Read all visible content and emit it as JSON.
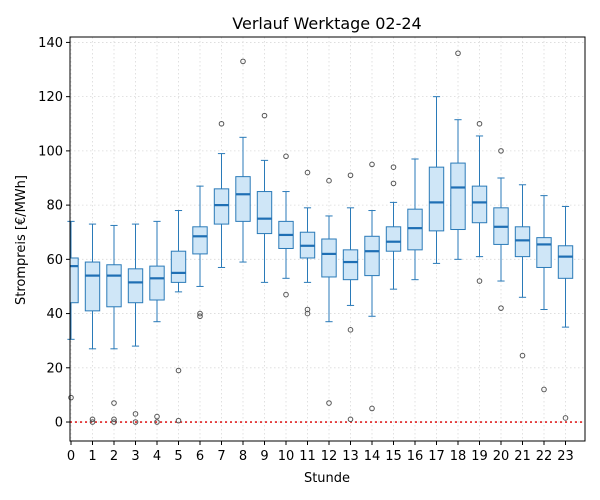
{
  "chart_data": {
    "type": "box",
    "title": "Verlauf Werktage 02-24",
    "xlabel": "Stunde",
    "ylabel": "Strompreis [€/MWh]",
    "ylim": [
      -7,
      142
    ],
    "yticks": [
      0,
      20,
      40,
      60,
      80,
      100,
      120,
      140
    ],
    "categories": [
      "0",
      "1",
      "2",
      "3",
      "4",
      "5",
      "6",
      "7",
      "8",
      "9",
      "10",
      "11",
      "12",
      "13",
      "14",
      "15",
      "16",
      "17",
      "18",
      "19",
      "20",
      "21",
      "22",
      "23"
    ],
    "reference_line": {
      "y": 0,
      "color": "#e02020",
      "style": "dotted"
    },
    "grid": true,
    "boxes": [
      {
        "q1": 44,
        "median": 57.5,
        "q3": 60.5,
        "whisker_low": 30.5,
        "whisker_high": 74,
        "outliers": [
          9
        ]
      },
      {
        "q1": 41,
        "median": 54,
        "q3": 59,
        "whisker_low": 27,
        "whisker_high": 73,
        "outliers": [
          1,
          0
        ]
      },
      {
        "q1": 42.5,
        "median": 54,
        "q3": 58,
        "whisker_low": 27,
        "whisker_high": 72.5,
        "outliers": [
          7,
          1,
          0
        ]
      },
      {
        "q1": 44,
        "median": 51.5,
        "q3": 56.5,
        "whisker_low": 28,
        "whisker_high": 73,
        "outliers": [
          3,
          0
        ]
      },
      {
        "q1": 45,
        "median": 53,
        "q3": 57.5,
        "whisker_low": 37,
        "whisker_high": 74,
        "outliers": [
          2,
          0
        ]
      },
      {
        "q1": 51.5,
        "median": 55,
        "q3": 63,
        "whisker_low": 48,
        "whisker_high": 78,
        "outliers": [
          19,
          0.5
        ]
      },
      {
        "q1": 62,
        "median": 68.5,
        "q3": 72,
        "whisker_low": 50,
        "whisker_high": 87,
        "outliers": [
          40,
          39
        ]
      },
      {
        "q1": 73,
        "median": 80,
        "q3": 86,
        "whisker_low": 57,
        "whisker_high": 99,
        "outliers": [
          110
        ]
      },
      {
        "q1": 74,
        "median": 84,
        "q3": 90.5,
        "whisker_low": 59,
        "whisker_high": 105,
        "outliers": [
          133
        ]
      },
      {
        "q1": 69.5,
        "median": 75,
        "q3": 85,
        "whisker_low": 51.5,
        "whisker_high": 96.5,
        "outliers": [
          113
        ]
      },
      {
        "q1": 64,
        "median": 69,
        "q3": 74,
        "whisker_low": 53,
        "whisker_high": 85,
        "outliers": [
          98,
          47
        ]
      },
      {
        "q1": 60.5,
        "median": 65,
        "q3": 70,
        "whisker_low": 51.5,
        "whisker_high": 79,
        "outliers": [
          92,
          41.5,
          40
        ]
      },
      {
        "q1": 53.5,
        "median": 62,
        "q3": 67.5,
        "whisker_low": 37,
        "whisker_high": 76,
        "outliers": [
          89,
          7
        ]
      },
      {
        "q1": 52.5,
        "median": 59,
        "q3": 63.5,
        "whisker_low": 43,
        "whisker_high": 79,
        "outliers": [
          91,
          34,
          1
        ]
      },
      {
        "q1": 54,
        "median": 63,
        "q3": 68.5,
        "whisker_low": 39,
        "whisker_high": 78,
        "outliers": [
          95,
          5
        ]
      },
      {
        "q1": 63,
        "median": 66.5,
        "q3": 72,
        "whisker_low": 49,
        "whisker_high": 81,
        "outliers": [
          94,
          88
        ]
      },
      {
        "q1": 63.5,
        "median": 71.5,
        "q3": 78.5,
        "whisker_low": 52.5,
        "whisker_high": 97,
        "outliers": []
      },
      {
        "q1": 70.5,
        "median": 81,
        "q3": 94,
        "whisker_low": 58.5,
        "whisker_high": 120,
        "outliers": []
      },
      {
        "q1": 71,
        "median": 86.5,
        "q3": 95.5,
        "whisker_low": 60,
        "whisker_high": 111.5,
        "outliers": [
          136
        ]
      },
      {
        "q1": 73.5,
        "median": 81,
        "q3": 87,
        "whisker_low": 61,
        "whisker_high": 105.5,
        "outliers": [
          110,
          52
        ]
      },
      {
        "q1": 65.5,
        "median": 72,
        "q3": 79,
        "whisker_low": 52,
        "whisker_high": 90,
        "outliers": [
          100,
          42
        ]
      },
      {
        "q1": 61,
        "median": 67,
        "q3": 72,
        "whisker_low": 46,
        "whisker_high": 87.5,
        "outliers": [
          24.5
        ]
      },
      {
        "q1": 57,
        "median": 65.5,
        "q3": 68,
        "whisker_low": 41.5,
        "whisker_high": 83.5,
        "outliers": [
          12
        ]
      },
      {
        "q1": 53,
        "median": 61,
        "q3": 65,
        "whisker_low": 35,
        "whisker_high": 79.5,
        "outliers": [
          1.5
        ]
      }
    ]
  }
}
